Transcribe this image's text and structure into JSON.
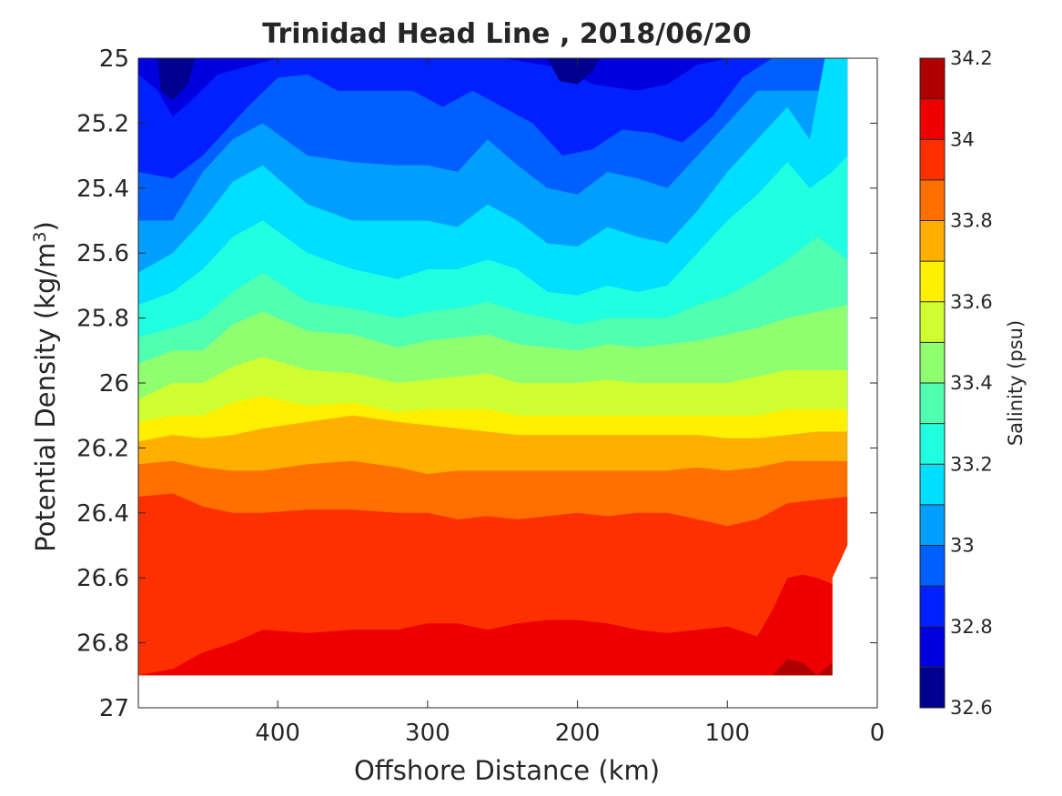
{
  "chart_data": {
    "type": "contour",
    "title": "Trinidad Head Line , 2018/06/20",
    "xlabel": "Offshore Distance (km)",
    "ylabel_main": "Potential Density (kg/m",
    "ylabel_sup": "3",
    "ylabel_close": ")",
    "x_reversed": true,
    "xlim": [
      0,
      493
    ],
    "ylim": [
      25,
      27
    ],
    "y_reversed": true,
    "xticks": [
      400,
      300,
      200,
      100,
      0
    ],
    "yticks": [
      25,
      25.2,
      25.4,
      25.6,
      25.8,
      26,
      26.2,
      26.4,
      26.6,
      26.8,
      27
    ],
    "colorbar": {
      "label": "Salinity (psu)",
      "min": 32.6,
      "max": 34.2,
      "ticks": [
        32.6,
        32.8,
        33,
        33.2,
        33.4,
        33.6,
        33.8,
        34,
        34.2
      ],
      "levels": [
        32.6,
        32.7,
        32.8,
        32.9,
        33.0,
        33.1,
        33.2,
        33.3,
        33.4,
        33.5,
        33.6,
        33.7,
        33.8,
        33.9,
        34.0,
        34.1,
        34.2
      ],
      "colors": [
        "#00008f",
        "#0000df",
        "#0020ff",
        "#0060ff",
        "#009fff",
        "#00dfff",
        "#20ffdf",
        "#50ffaf",
        "#8fff70",
        "#cfff30",
        "#ffef00",
        "#ffaf00",
        "#ff7000",
        "#ff3000",
        "#ef0000",
        "#af0000"
      ]
    },
    "data_extent": {
      "x_min": 20,
      "x_max": 493,
      "y_min": 25,
      "y_max": 26.9
    },
    "isopycnal_salinity_boundaries": [
      {
        "level": 32.8,
        "x": [
          493,
          480,
          470,
          460,
          440,
          400,
          380,
          320,
          300,
          270,
          250,
          210,
          190,
          160,
          140,
          120,
          100,
          90
        ],
        "y": [
          25.05,
          25.1,
          25.18,
          25.14,
          25.05,
          25.0,
          25.0,
          25.0,
          25.0,
          25.0,
          25.0,
          25.03,
          25.08,
          25.1,
          25.08,
          25.02,
          25.0,
          25.0
        ]
      },
      {
        "level": 32.9,
        "x": [
          493,
          470,
          450,
          420,
          400,
          380,
          360,
          340,
          310,
          290,
          270,
          250,
          230,
          210,
          190,
          170,
          150,
          130,
          110,
          90,
          70
        ],
        "y": [
          25.35,
          25.37,
          25.3,
          25.15,
          25.06,
          25.05,
          25.1,
          25.1,
          25.1,
          25.15,
          25.1,
          25.15,
          25.2,
          25.3,
          25.28,
          25.22,
          25.23,
          25.26,
          25.18,
          25.06,
          25.0
        ]
      },
      {
        "level": 33.0,
        "x": [
          493,
          470,
          450,
          430,
          410,
          380,
          350,
          320,
          300,
          280,
          260,
          240,
          220,
          200,
          180,
          160,
          140,
          120,
          100,
          80,
          60
        ],
        "y": [
          25.5,
          25.5,
          25.35,
          25.25,
          25.2,
          25.3,
          25.32,
          25.33,
          25.33,
          25.35,
          25.25,
          25.33,
          25.4,
          25.42,
          25.35,
          25.37,
          25.4,
          25.3,
          25.2,
          25.1,
          25.1
        ]
      },
      {
        "level": 33.1,
        "x": [
          493,
          470,
          450,
          430,
          410,
          380,
          350,
          320,
          300,
          280,
          260,
          240,
          220,
          200,
          180,
          160,
          140,
          120,
          100,
          80,
          60,
          45,
          35
        ],
        "y": [
          25.66,
          25.6,
          25.5,
          25.38,
          25.33,
          25.45,
          25.5,
          25.5,
          25.5,
          25.52,
          25.45,
          25.5,
          25.57,
          25.58,
          25.52,
          25.55,
          25.57,
          25.47,
          25.35,
          25.25,
          25.15,
          25.25,
          25.0
        ]
      },
      {
        "level": 33.2,
        "x": [
          493,
          470,
          450,
          430,
          410,
          380,
          350,
          320,
          300,
          280,
          260,
          240,
          220,
          200,
          180,
          160,
          140,
          120,
          100,
          80,
          60,
          45,
          30,
          20
        ],
        "y": [
          25.76,
          25.72,
          25.65,
          25.55,
          25.5,
          25.6,
          25.65,
          25.68,
          25.65,
          25.65,
          25.62,
          25.65,
          25.72,
          25.73,
          25.7,
          25.72,
          25.7,
          25.6,
          25.5,
          25.42,
          25.32,
          25.4,
          25.35,
          25.3
        ]
      },
      {
        "level": 33.3,
        "x": [
          493,
          470,
          450,
          430,
          410,
          380,
          350,
          320,
          300,
          280,
          260,
          240,
          220,
          200,
          180,
          160,
          140,
          120,
          100,
          80,
          60,
          40,
          20
        ],
        "y": [
          25.86,
          25.83,
          25.8,
          25.72,
          25.66,
          25.75,
          25.77,
          25.8,
          25.78,
          25.77,
          25.75,
          25.78,
          25.8,
          25.82,
          25.8,
          25.8,
          25.8,
          25.76,
          25.73,
          25.68,
          25.62,
          25.55,
          25.62
        ]
      },
      {
        "level": 33.4,
        "x": [
          493,
          470,
          450,
          430,
          410,
          380,
          350,
          320,
          300,
          280,
          260,
          240,
          220,
          200,
          180,
          160,
          140,
          120,
          100,
          80,
          60,
          40,
          20
        ],
        "y": [
          25.94,
          25.9,
          25.9,
          25.82,
          25.78,
          25.84,
          25.85,
          25.89,
          25.87,
          25.86,
          25.85,
          25.88,
          25.89,
          25.9,
          25.88,
          25.89,
          25.88,
          25.87,
          25.85,
          25.83,
          25.8,
          25.78,
          25.76
        ]
      },
      {
        "level": 33.5,
        "x": [
          493,
          470,
          450,
          430,
          410,
          380,
          350,
          320,
          300,
          280,
          260,
          240,
          220,
          200,
          180,
          160,
          140,
          120,
          100,
          80,
          60,
          40,
          20
        ],
        "y": [
          26.05,
          26.0,
          26.0,
          25.95,
          25.92,
          25.96,
          25.97,
          26.0,
          25.99,
          25.98,
          25.97,
          26.0,
          26.0,
          26.0,
          25.99,
          26.0,
          26.0,
          26.0,
          26.0,
          25.98,
          25.96,
          25.96,
          25.96
        ]
      },
      {
        "level": 33.6,
        "x": [
          493,
          470,
          450,
          430,
          410,
          380,
          350,
          320,
          300,
          280,
          260,
          240,
          220,
          200,
          180,
          160,
          140,
          120,
          100,
          80,
          60,
          40,
          20
        ],
        "y": [
          26.12,
          26.1,
          26.1,
          26.06,
          26.04,
          26.07,
          26.06,
          26.09,
          26.08,
          26.08,
          26.08,
          26.1,
          26.1,
          26.1,
          26.1,
          26.1,
          26.1,
          26.1,
          26.1,
          26.1,
          26.08,
          26.08,
          26.08
        ]
      },
      {
        "level": 33.7,
        "x": [
          493,
          470,
          450,
          430,
          410,
          380,
          350,
          320,
          300,
          280,
          260,
          240,
          220,
          200,
          180,
          160,
          140,
          120,
          100,
          80,
          60,
          40,
          20
        ],
        "y": [
          26.18,
          26.16,
          26.17,
          26.16,
          26.14,
          26.12,
          26.1,
          26.12,
          26.13,
          26.14,
          26.15,
          26.16,
          26.16,
          26.16,
          26.16,
          26.16,
          26.16,
          26.16,
          26.17,
          26.17,
          26.16,
          26.15,
          26.15
        ]
      },
      {
        "level": 33.8,
        "x": [
          493,
          470,
          450,
          430,
          410,
          380,
          350,
          320,
          300,
          280,
          260,
          240,
          220,
          200,
          180,
          160,
          140,
          120,
          100,
          80,
          60,
          40,
          20
        ],
        "y": [
          26.25,
          26.24,
          26.26,
          26.27,
          26.27,
          26.25,
          26.24,
          26.26,
          26.28,
          26.27,
          26.27,
          26.27,
          26.27,
          26.27,
          26.27,
          26.27,
          26.27,
          26.26,
          26.27,
          26.26,
          26.24,
          26.24,
          26.24
        ]
      },
      {
        "level": 33.9,
        "x": [
          493,
          470,
          450,
          430,
          410,
          380,
          350,
          320,
          300,
          280,
          260,
          240,
          220,
          200,
          180,
          160,
          140,
          120,
          100,
          80,
          60,
          40,
          20
        ],
        "y": [
          26.35,
          26.34,
          26.38,
          26.4,
          26.4,
          26.39,
          26.39,
          26.4,
          26.4,
          26.42,
          26.41,
          26.42,
          26.41,
          26.4,
          26.41,
          26.4,
          26.4,
          26.42,
          26.44,
          26.42,
          26.37,
          26.36,
          26.35
        ]
      },
      {
        "level": 34.0,
        "x": [
          493,
          470,
          450,
          430,
          410,
          380,
          350,
          320,
          300,
          280,
          260,
          240,
          220,
          200,
          180,
          160,
          140,
          120,
          100,
          80,
          70,
          60,
          50,
          40,
          30
        ],
        "y": [
          26.9,
          26.88,
          26.83,
          26.8,
          26.76,
          26.77,
          26.76,
          26.76,
          26.74,
          26.74,
          26.76,
          26.74,
          26.73,
          26.73,
          26.74,
          26.76,
          26.77,
          26.76,
          26.75,
          26.78,
          26.7,
          26.6,
          26.59,
          26.6,
          26.62
        ]
      },
      {
        "level": 34.1,
        "x": [
          70,
          60,
          50,
          40,
          30
        ],
        "y": [
          26.9,
          26.85,
          26.86,
          26.9,
          26.86
        ]
      }
    ],
    "grid": false
  }
}
